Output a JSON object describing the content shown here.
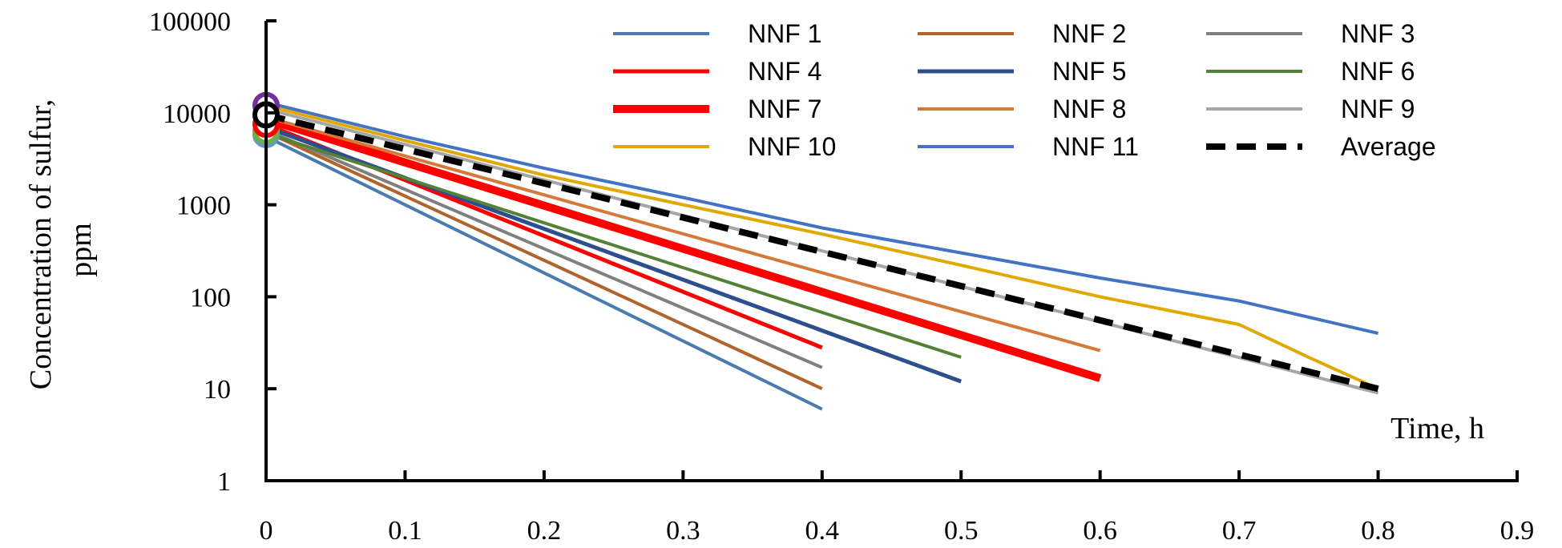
{
  "chart_data": {
    "type": "line",
    "y_scale": "log",
    "xlabel": "Time, h",
    "ylabel_line1": "Concentration of sulfur,",
    "ylabel_line2": "ppm",
    "xlim": [
      0,
      0.9
    ],
    "ylim": [
      1,
      100000
    ],
    "x_ticks": [
      "0",
      "0.1",
      "0.2",
      "0.3",
      "0.4",
      "0.5",
      "0.6",
      "0.7",
      "0.8",
      "0.9"
    ],
    "y_ticks": [
      "1",
      "10",
      "100",
      "1000",
      "10000",
      "100000"
    ],
    "legend_position": "top-right",
    "series": [
      {
        "name": "NNF 1",
        "color": "#4a7ab0",
        "width": 4,
        "dash": "",
        "x": [
          0,
          0.4
        ],
        "y": [
          5500,
          6
        ]
      },
      {
        "name": "NNF 2",
        "color": "#b0632b",
        "width": 4,
        "dash": "",
        "x": [
          0,
          0.4
        ],
        "y": [
          6200,
          10
        ]
      },
      {
        "name": "NNF 3",
        "color": "#7f7f7f",
        "width": 4,
        "dash": "",
        "x": [
          0,
          0.4
        ],
        "y": [
          6500,
          17
        ]
      },
      {
        "name": "NNF 4",
        "color": "#ff0000",
        "width": 5,
        "dash": "",
        "x": [
          0,
          0.4
        ],
        "y": [
          7500,
          28
        ]
      },
      {
        "name": "NNF 5",
        "color": "#2e4f8f",
        "width": 5,
        "dash": "",
        "x": [
          0,
          0.5
        ],
        "y": [
          7000,
          12
        ]
      },
      {
        "name": "NNF 6",
        "color": "#538135",
        "width": 4,
        "dash": "",
        "x": [
          0,
          0.5
        ],
        "y": [
          6000,
          22
        ]
      },
      {
        "name": "NNF 7",
        "color": "#ff0000",
        "width": 10,
        "dash": "",
        "x": [
          0,
          0.6
        ],
        "y": [
          8500,
          13
        ]
      },
      {
        "name": "NNF 8",
        "color": "#d4793a",
        "width": 4,
        "dash": "",
        "x": [
          0,
          0.6
        ],
        "y": [
          9000,
          26
        ]
      },
      {
        "name": "NNF 9",
        "color": "#a6a6a6",
        "width": 4,
        "dash": "",
        "x": [
          0,
          0.8
        ],
        "y": [
          11000,
          9
        ]
      },
      {
        "name": "NNF 10",
        "color": "#e0a800",
        "width": 4,
        "dash": "",
        "x": [
          0,
          0.1,
          0.2,
          0.3,
          0.4,
          0.5,
          0.6,
          0.7,
          0.75,
          0.8
        ],
        "y": [
          12000,
          5000,
          2100,
          1000,
          480,
          220,
          100,
          50,
          22,
          10
        ]
      },
      {
        "name": "NNF 11",
        "color": "#4472c4",
        "width": 4,
        "dash": "",
        "x": [
          0,
          0.1,
          0.2,
          0.3,
          0.4,
          0.5,
          0.6,
          0.7,
          0.8
        ],
        "y": [
          13000,
          5500,
          2500,
          1200,
          560,
          300,
          160,
          90,
          40
        ]
      },
      {
        "name": "Average",
        "color": "#000000",
        "width": 8,
        "dash": "24,14",
        "x": [
          0,
          0.8
        ],
        "y": [
          9500,
          10
        ]
      }
    ],
    "start_markers": [
      {
        "y": 12000,
        "color": "#7030a0",
        "fill": "#ffffff"
      },
      {
        "y": 5800,
        "color": "#5b9bd5",
        "fill": "#ffffff"
      },
      {
        "y": 6300,
        "color": "#70ad47",
        "fill": "#ffffff"
      },
      {
        "y": 7500,
        "color": "#ff0000",
        "fill": "#ffffff"
      },
      {
        "y": 9500,
        "color": "#000000",
        "fill": "#ffffff"
      }
    ]
  }
}
